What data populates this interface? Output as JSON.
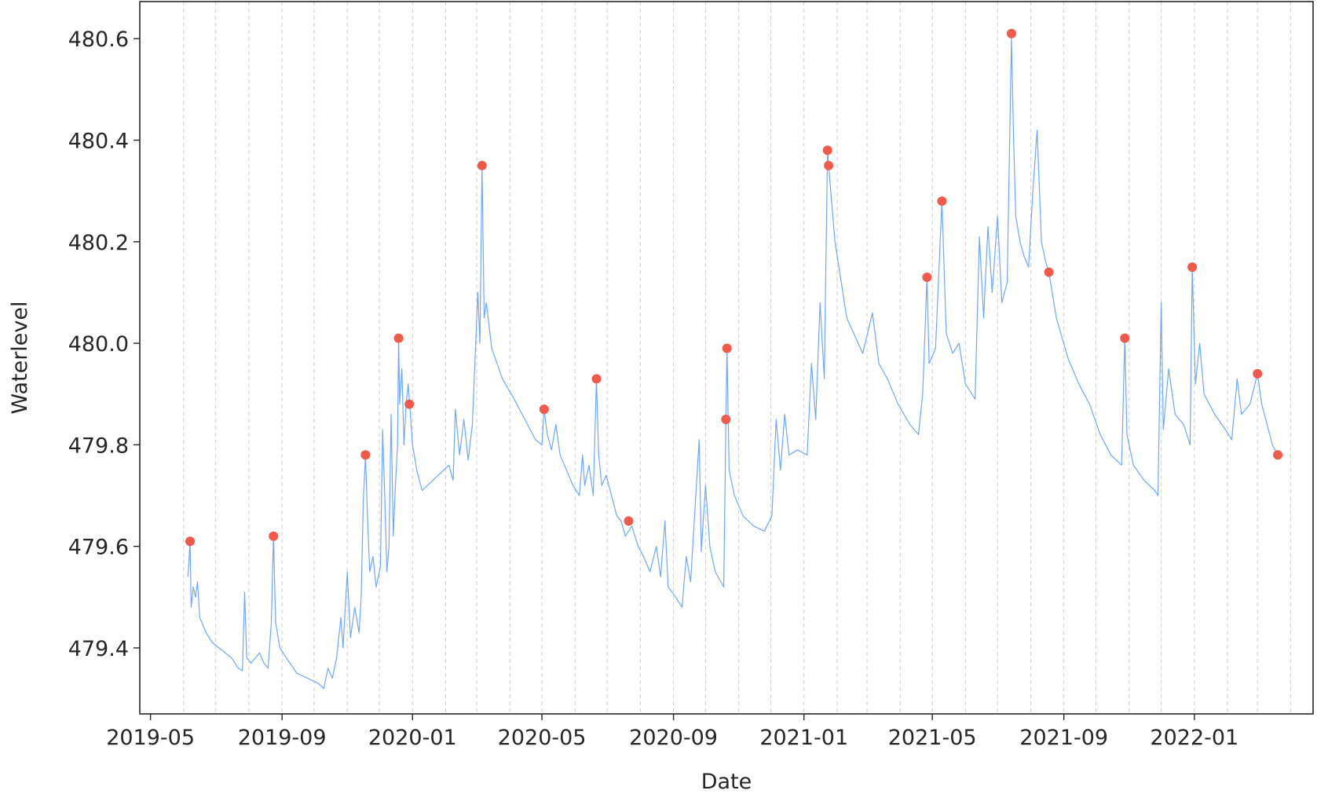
{
  "chart_data": {
    "type": "line",
    "xlabel": "Date",
    "ylabel": "Waterlevel",
    "x_ticks": [
      "2019-05",
      "2019-09",
      "2020-01",
      "2020-05",
      "2020-09",
      "2021-01",
      "2021-05",
      "2021-09",
      "2022-01"
    ],
    "y_ticks": [
      "479.4",
      "479.6",
      "479.8",
      "480.0",
      "480.2",
      "480.4",
      "480.6"
    ],
    "xlim": [
      "2019-04-21",
      "2022-04-22"
    ],
    "ylim": [
      479.27,
      480.673
    ],
    "grid": "vertical dashed lines at month starts",
    "colors": {
      "line": "#6fa8f7",
      "peaks": "#f15a4a",
      "grid": "#cfcfcf",
      "axes": "#262626"
    },
    "series": [
      {
        "values": [
          [
            "2019-06-05",
            479.54
          ],
          [
            "2019-06-06",
            479.57
          ],
          [
            "2019-06-07",
            479.61
          ],
          [
            "2019-06-08",
            479.48
          ],
          [
            "2019-06-10",
            479.52
          ],
          [
            "2019-06-12",
            479.5
          ],
          [
            "2019-06-14",
            479.53
          ],
          [
            "2019-06-16",
            479.46
          ],
          [
            "2019-06-22",
            479.43
          ],
          [
            "2019-06-28",
            479.41
          ],
          [
            "2019-07-04",
            479.4
          ],
          [
            "2019-07-10",
            479.39
          ],
          [
            "2019-07-16",
            479.38
          ],
          [
            "2019-07-22",
            479.36
          ],
          [
            "2019-07-26",
            479.355
          ],
          [
            "2019-07-28",
            479.51
          ],
          [
            "2019-07-30",
            479.38
          ],
          [
            "2019-08-03",
            479.37
          ],
          [
            "2019-08-07",
            479.38
          ],
          [
            "2019-08-11",
            479.39
          ],
          [
            "2019-08-15",
            479.37
          ],
          [
            "2019-08-19",
            479.36
          ],
          [
            "2019-08-22",
            479.45
          ],
          [
            "2019-08-24",
            479.62
          ],
          [
            "2019-08-26",
            479.45
          ],
          [
            "2019-08-30",
            479.4
          ],
          [
            "2019-09-05",
            479.38
          ],
          [
            "2019-09-15",
            479.35
          ],
          [
            "2019-09-25",
            479.34
          ],
          [
            "2019-10-05",
            479.33
          ],
          [
            "2019-10-10",
            479.32
          ],
          [
            "2019-10-14",
            479.36
          ],
          [
            "2019-10-18",
            479.34
          ],
          [
            "2019-10-22",
            479.38
          ],
          [
            "2019-10-26",
            479.46
          ],
          [
            "2019-10-28",
            479.4
          ],
          [
            "2019-11-01",
            479.55
          ],
          [
            "2019-11-04",
            479.42
          ],
          [
            "2019-11-08",
            479.48
          ],
          [
            "2019-11-12",
            479.43
          ],
          [
            "2019-11-14",
            479.5
          ],
          [
            "2019-11-16",
            479.69
          ],
          [
            "2019-11-18",
            479.78
          ],
          [
            "2019-11-20",
            479.65
          ],
          [
            "2019-11-22",
            479.55
          ],
          [
            "2019-11-25",
            479.58
          ],
          [
            "2019-11-28",
            479.52
          ],
          [
            "2019-12-02",
            479.56
          ],
          [
            "2019-12-04",
            479.83
          ],
          [
            "2019-12-06",
            479.7
          ],
          [
            "2019-12-08",
            479.55
          ],
          [
            "2019-12-10",
            479.6
          ],
          [
            "2019-12-12",
            479.86
          ],
          [
            "2019-12-14",
            479.62
          ],
          [
            "2019-12-16",
            479.72
          ],
          [
            "2019-12-18",
            479.8
          ],
          [
            "2019-12-19",
            480.01
          ],
          [
            "2019-12-20",
            479.88
          ],
          [
            "2019-12-22",
            479.95
          ],
          [
            "2019-12-24",
            479.8
          ],
          [
            "2019-12-26",
            479.88
          ],
          [
            "2019-12-28",
            479.92
          ],
          [
            "2020-01-01",
            479.8
          ],
          [
            "2020-01-05",
            479.75
          ],
          [
            "2020-01-10",
            479.71
          ],
          [
            "2020-02-04",
            479.76
          ],
          [
            "2020-02-08",
            479.73
          ],
          [
            "2020-02-10",
            479.87
          ],
          [
            "2020-02-14",
            479.78
          ],
          [
            "2020-02-18",
            479.85
          ],
          [
            "2020-02-22",
            479.77
          ],
          [
            "2020-02-26",
            479.84
          ],
          [
            "2020-03-02",
            480.1
          ],
          [
            "2020-03-04",
            480.0
          ],
          [
            "2020-03-06",
            480.35
          ],
          [
            "2020-03-08",
            480.05
          ],
          [
            "2020-03-10",
            480.08
          ],
          [
            "2020-03-15",
            479.99
          ],
          [
            "2020-03-25",
            479.93
          ],
          [
            "2020-04-05",
            479.89
          ],
          [
            "2020-04-15",
            479.85
          ],
          [
            "2020-04-25",
            479.81
          ],
          [
            "2020-05-01",
            479.8
          ],
          [
            "2020-05-03",
            479.87
          ],
          [
            "2020-05-06",
            479.82
          ],
          [
            "2020-05-10",
            479.79
          ],
          [
            "2020-05-14",
            479.84
          ],
          [
            "2020-05-18",
            479.78
          ],
          [
            "2020-05-24",
            479.75
          ],
          [
            "2020-05-30",
            479.72
          ],
          [
            "2020-06-05",
            479.7
          ],
          [
            "2020-06-08",
            479.78
          ],
          [
            "2020-06-10",
            479.72
          ],
          [
            "2020-06-14",
            479.76
          ],
          [
            "2020-06-18",
            479.7
          ],
          [
            "2020-06-21",
            479.93
          ],
          [
            "2020-06-23",
            479.78
          ],
          [
            "2020-06-26",
            479.72
          ],
          [
            "2020-06-30",
            479.74
          ],
          [
            "2020-07-05",
            479.7
          ],
          [
            "2020-07-10",
            479.66
          ],
          [
            "2020-07-14",
            479.65
          ],
          [
            "2020-07-18",
            479.62
          ],
          [
            "2020-07-24",
            479.64
          ],
          [
            "2020-07-30",
            479.6
          ],
          [
            "2020-08-04",
            479.58
          ],
          [
            "2020-08-10",
            479.55
          ],
          [
            "2020-08-16",
            479.6
          ],
          [
            "2020-08-20",
            479.54
          ],
          [
            "2020-08-24",
            479.65
          ],
          [
            "2020-08-27",
            479.52
          ],
          [
            "2020-09-03",
            479.5
          ],
          [
            "2020-09-09",
            479.48
          ],
          [
            "2020-09-13",
            479.58
          ],
          [
            "2020-09-17",
            479.53
          ],
          [
            "2020-09-21",
            479.67
          ],
          [
            "2020-09-25",
            479.81
          ],
          [
            "2020-09-27",
            479.59
          ],
          [
            "2020-10-01",
            479.72
          ],
          [
            "2020-10-05",
            479.6
          ],
          [
            "2020-10-10",
            479.55
          ],
          [
            "2020-10-18",
            479.52
          ],
          [
            "2020-10-20",
            479.85
          ],
          [
            "2020-10-21",
            479.99
          ],
          [
            "2020-10-23",
            479.75
          ],
          [
            "2020-10-28",
            479.7
          ],
          [
            "2020-11-05",
            479.66
          ],
          [
            "2020-11-15",
            479.64
          ],
          [
            "2020-11-25",
            479.63
          ],
          [
            "2020-12-02",
            479.66
          ],
          [
            "2020-12-06",
            479.85
          ],
          [
            "2020-12-10",
            479.75
          ],
          [
            "2020-12-14",
            479.86
          ],
          [
            "2020-12-18",
            479.78
          ],
          [
            "2020-12-26",
            479.79
          ],
          [
            "2021-01-04",
            479.78
          ],
          [
            "2021-01-08",
            479.96
          ],
          [
            "2021-01-12",
            479.85
          ],
          [
            "2021-01-16",
            480.08
          ],
          [
            "2021-01-20",
            479.93
          ],
          [
            "2021-01-23",
            480.38
          ],
          [
            "2021-01-24",
            480.35
          ],
          [
            "2021-01-26",
            480.3
          ],
          [
            "2021-01-30",
            480.2
          ],
          [
            "2021-02-10",
            480.05
          ],
          [
            "2021-02-25",
            479.98
          ],
          [
            "2021-03-06",
            480.06
          ],
          [
            "2021-03-12",
            479.96
          ],
          [
            "2021-03-20",
            479.93
          ],
          [
            "2021-03-30",
            479.88
          ],
          [
            "2021-04-10",
            479.84
          ],
          [
            "2021-04-18",
            479.82
          ],
          [
            "2021-04-22",
            479.9
          ],
          [
            "2021-04-26",
            480.13
          ],
          [
            "2021-04-28",
            479.96
          ],
          [
            "2021-05-04",
            479.99
          ],
          [
            "2021-05-10",
            480.28
          ],
          [
            "2021-05-14",
            480.02
          ],
          [
            "2021-05-20",
            479.98
          ],
          [
            "2021-05-26",
            480.0
          ],
          [
            "2021-06-01",
            479.92
          ],
          [
            "2021-06-10",
            479.89
          ],
          [
            "2021-06-14",
            480.21
          ],
          [
            "2021-06-18",
            480.05
          ],
          [
            "2021-06-22",
            480.23
          ],
          [
            "2021-06-26",
            480.1
          ],
          [
            "2021-07-01",
            480.25
          ],
          [
            "2021-07-05",
            480.08
          ],
          [
            "2021-07-10",
            480.12
          ],
          [
            "2021-07-14",
            480.6
          ],
          [
            "2021-07-16",
            480.4
          ],
          [
            "2021-07-18",
            480.25
          ],
          [
            "2021-07-22",
            480.2
          ],
          [
            "2021-07-26",
            480.17
          ],
          [
            "2021-07-30",
            480.15
          ],
          [
            "2021-08-03",
            480.3
          ],
          [
            "2021-08-07",
            480.42
          ],
          [
            "2021-08-11",
            480.2
          ],
          [
            "2021-08-15",
            480.16
          ],
          [
            "2021-08-18",
            480.14
          ],
          [
            "2021-08-25",
            480.05
          ],
          [
            "2021-09-05",
            479.97
          ],
          [
            "2021-09-15",
            479.92
          ],
          [
            "2021-09-25",
            479.88
          ],
          [
            "2021-10-05",
            479.82
          ],
          [
            "2021-10-15",
            479.78
          ],
          [
            "2021-10-25",
            479.76
          ],
          [
            "2021-10-28",
            480.01
          ],
          [
            "2021-10-30",
            479.82
          ],
          [
            "2021-11-05",
            479.76
          ],
          [
            "2021-11-15",
            479.73
          ],
          [
            "2021-11-25",
            479.71
          ],
          [
            "2021-11-28",
            479.7
          ],
          [
            "2021-12-01",
            480.08
          ],
          [
            "2021-12-03",
            479.83
          ],
          [
            "2021-12-08",
            479.95
          ],
          [
            "2021-12-14",
            479.86
          ],
          [
            "2021-12-22",
            479.84
          ],
          [
            "2021-12-28",
            479.8
          ],
          [
            "2021-12-30",
            480.15
          ],
          [
            "2022-01-02",
            479.92
          ],
          [
            "2022-01-06",
            480.0
          ],
          [
            "2022-01-10",
            479.9
          ],
          [
            "2022-01-20",
            479.86
          ],
          [
            "2022-01-30",
            479.83
          ],
          [
            "2022-02-05",
            479.81
          ],
          [
            "2022-02-10",
            479.93
          ],
          [
            "2022-02-14",
            479.86
          ],
          [
            "2022-02-22",
            479.88
          ],
          [
            "2022-03-01",
            479.94
          ],
          [
            "2022-03-05",
            479.88
          ],
          [
            "2022-03-15",
            479.8
          ],
          [
            "2022-03-20",
            479.78
          ]
        ]
      }
    ],
    "peaks": [
      [
        "2019-06-07",
        479.61
      ],
      [
        "2019-08-24",
        479.62
      ],
      [
        "2019-11-18",
        479.78
      ],
      [
        "2019-12-19",
        480.01
      ],
      [
        "2019-12-29",
        479.88
      ],
      [
        "2020-03-06",
        480.35
      ],
      [
        "2020-05-03",
        479.87
      ],
      [
        "2020-06-21",
        479.93
      ],
      [
        "2020-07-21",
        479.65
      ],
      [
        "2020-10-20",
        479.85
      ],
      [
        "2020-10-21",
        479.99
      ],
      [
        "2021-01-23",
        480.38
      ],
      [
        "2021-01-24",
        480.35
      ],
      [
        "2021-04-26",
        480.13
      ],
      [
        "2021-05-10",
        480.28
      ],
      [
        "2021-07-14",
        480.61
      ],
      [
        "2021-08-18",
        480.14
      ],
      [
        "2021-10-28",
        480.01
      ],
      [
        "2021-12-30",
        480.15
      ],
      [
        "2022-03-01",
        479.94
      ],
      [
        "2022-03-20",
        479.78
      ]
    ]
  }
}
